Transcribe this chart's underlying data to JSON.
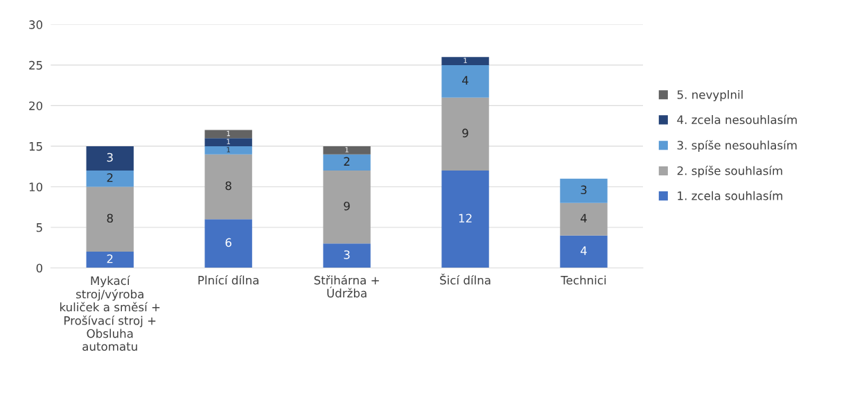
{
  "chart_data": {
    "type": "bar",
    "stacked": true,
    "categories": [
      "Mykací\nstroj/výroba\nkuliček a směsí +\nProšívací stroj +\nObsluha\nautomatu",
      "Plnící dílna",
      "Střihárna +\nÚdržba",
      "Šicí dílna",
      "Technici"
    ],
    "series": [
      {
        "name": "1. zcela souhlasím",
        "color": "#4472c4",
        "values": [
          2,
          6,
          3,
          12,
          4
        ]
      },
      {
        "name": "2. spíše souhlasím",
        "color": "#a5a5a5",
        "values": [
          8,
          8,
          9,
          9,
          4
        ]
      },
      {
        "name": "3. spíše nesouhlasím",
        "color": "#5b9bd5",
        "values": [
          2,
          1,
          2,
          4,
          3
        ]
      },
      {
        "name": "4. zcela nesouhlasím",
        "color": "#264478",
        "values": [
          3,
          1,
          null,
          1,
          null
        ]
      },
      {
        "name": "5. nevyplnil",
        "color": "#636363",
        "values": [
          null,
          1,
          1,
          null,
          null
        ]
      }
    ],
    "ylim": [
      0,
      30
    ],
    "yticks": [
      0,
      5,
      10,
      15,
      20,
      25,
      30
    ],
    "grid": "y",
    "legend": "right",
    "data_labels": true
  }
}
